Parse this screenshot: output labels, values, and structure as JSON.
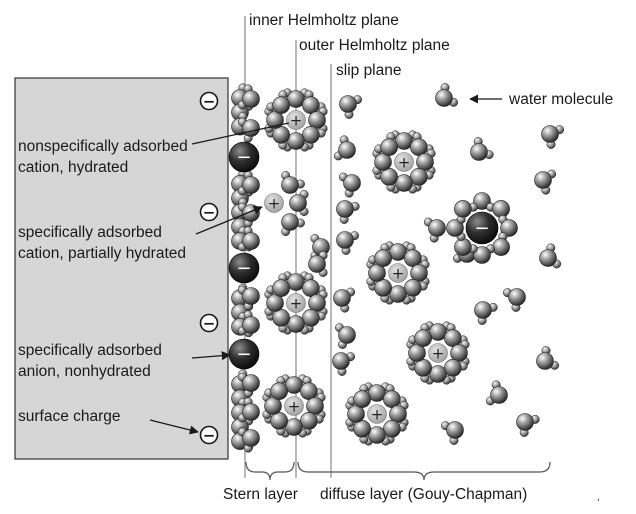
{
  "planes": {
    "inner_helmholtz": "inner Helmholtz plane",
    "outer_helmholtz": "outer Helmholtz plane",
    "slip": "slip plane"
  },
  "labels": {
    "water_molecule": "water molecule",
    "nonspecific_line1": "nonspecifically adsorbed",
    "nonspecific_line2": "cation, hydrated",
    "specific_cation_line1": "specifically adsorbed",
    "specific_cation_line2": "cation, partially hydrated",
    "specific_anion_line1": "specifically adsorbed",
    "specific_anion_line2": "anion, nonhydrated",
    "surface_charge": "surface charge"
  },
  "layers": {
    "stern": "Stern layer",
    "diffuse": "diffuse layer (Gouy-Chapman)"
  },
  "symbols": {
    "negative": "−",
    "positive": "+"
  },
  "colors": {
    "electrode": "#d6d6d6",
    "plane_line": "#8a8a8a",
    "ink": "#1a1a1a"
  }
}
